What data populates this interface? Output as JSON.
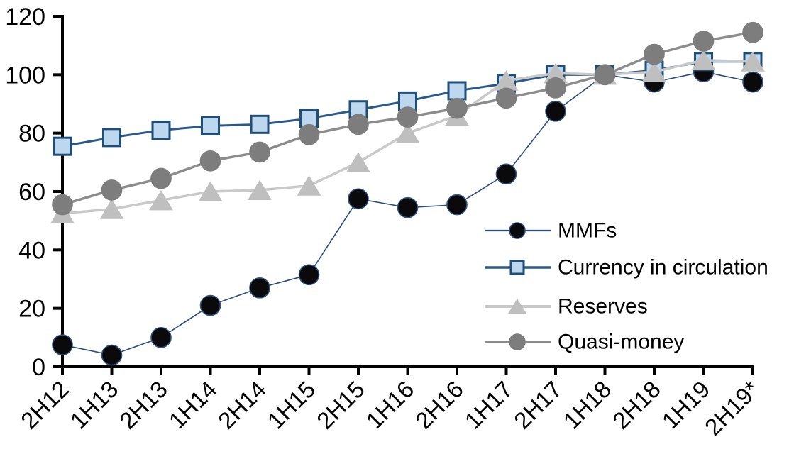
{
  "chart_data": {
    "type": "line",
    "title": "",
    "xlabel": "",
    "ylabel": "",
    "ylim": [
      0,
      120
    ],
    "y_ticks": [
      0,
      20,
      40,
      60,
      80,
      100,
      120
    ],
    "grid": false,
    "legend_position": "inside-right",
    "axis_color": "#000000",
    "background_color": "#ffffff",
    "categories": [
      "2H12",
      "1H13",
      "2H13",
      "1H14",
      "2H14",
      "1H15",
      "2H15",
      "1H16",
      "2H16",
      "1H17",
      "2H17",
      "1H18",
      "2H18",
      "1H19",
      "2H19*"
    ],
    "series": [
      {
        "name": "MMFs",
        "marker": "circle",
        "marker_fill": "#0a0a0c",
        "marker_stroke": "#33527e",
        "marker_size": 28,
        "line_color": "#2b4c7e",
        "line_width": 1.6,
        "values": [
          7.5,
          4,
          10,
          21,
          27,
          31.5,
          57.5,
          54.5,
          55.5,
          66,
          87.5,
          100,
          97.5,
          101,
          97.5
        ]
      },
      {
        "name": "Currency in circulation",
        "marker": "square",
        "marker_fill": "#bdd7ee",
        "marker_stroke": "#1f4e79",
        "marker_size": 27,
        "line_color": "#2a5a8c",
        "line_width": 3,
        "values": [
          75.5,
          78.5,
          81,
          82.5,
          83,
          85,
          88,
          91,
          94.5,
          97,
          100,
          100,
          101.5,
          104.5,
          104.5
        ]
      },
      {
        "name": "Reserves",
        "marker": "triangle",
        "marker_fill": "#bfbfbf",
        "marker_stroke": "#bfbfbf",
        "marker_size": 30,
        "line_color": "#c9c9c9",
        "line_width": 3.5,
        "values": [
          52.5,
          54,
          57,
          60,
          60.5,
          62,
          70,
          80,
          86,
          98,
          100.5,
          100,
          101,
          105,
          104.5
        ]
      },
      {
        "name": "Quasi-money",
        "marker": "circle",
        "marker_fill": "#7d7d7d",
        "marker_stroke": "#7d7d7d",
        "marker_size": 28,
        "line_color": "#8c8c8c",
        "line_width": 3.5,
        "values": [
          55.5,
          60.5,
          64.5,
          70.5,
          73.5,
          79.5,
          83,
          85.5,
          88.5,
          92,
          95.5,
          100,
          107,
          111.5,
          114.5
        ]
      }
    ]
  }
}
